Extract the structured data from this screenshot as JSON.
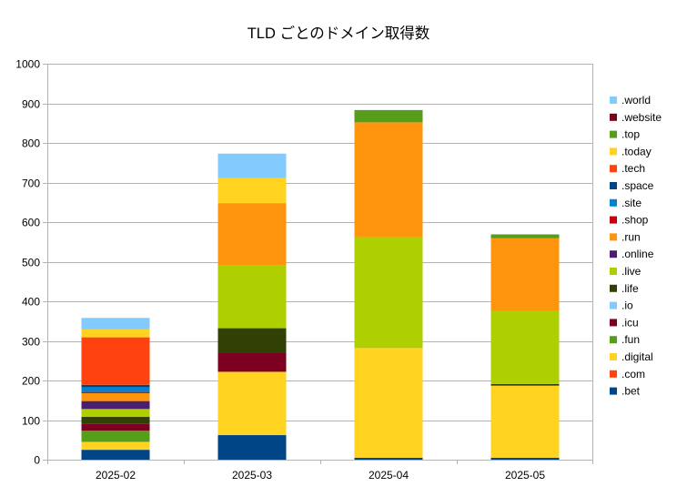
{
  "chart_data": {
    "type": "bar",
    "stacked": true,
    "title": "TLD ごとのドメイン取得数",
    "xlabel": "",
    "ylabel": "",
    "categories": [
      "2025-02",
      "2025-03",
      "2025-04",
      "2025-05"
    ],
    "ylim": [
      0,
      1000
    ],
    "yticks": [
      0,
      100,
      200,
      300,
      400,
      500,
      600,
      700,
      800,
      900,
      1000
    ],
    "grid": true,
    "legend_position": "right",
    "series": [
      {
        "name": ".bet",
        "color": "#004586",
        "values": [
          25,
          62,
          5,
          5
        ]
      },
      {
        "name": ".com",
        "color": "#ff420e",
        "values": [
          0,
          0,
          0,
          0
        ]
      },
      {
        "name": ".digital",
        "color": "#ffd320",
        "values": [
          20,
          160,
          277,
          182
        ]
      },
      {
        "name": ".fun",
        "color": "#579d1c",
        "values": [
          28,
          0,
          0,
          0
        ]
      },
      {
        "name": ".icu",
        "color": "#7e0021",
        "values": [
          17,
          48,
          0,
          0
        ]
      },
      {
        "name": ".io",
        "color": "#83caff",
        "values": [
          0,
          0,
          0,
          0
        ]
      },
      {
        "name": ".life",
        "color": "#314004",
        "values": [
          18,
          62,
          0,
          4
        ]
      },
      {
        "name": ".live",
        "color": "#aecf00",
        "values": [
          20,
          160,
          280,
          186
        ]
      },
      {
        "name": ".online",
        "color": "#4b1f6f",
        "values": [
          20,
          0,
          0,
          0
        ]
      },
      {
        "name": ".run",
        "color": "#ff950e",
        "values": [
          20,
          156,
          290,
          182
        ]
      },
      {
        "name": ".shop",
        "color": "#c5000b",
        "values": [
          3,
          0,
          0,
          0
        ]
      },
      {
        "name": ".site",
        "color": "#0084d1",
        "values": [
          12,
          0,
          0,
          0
        ]
      },
      {
        "name": ".space",
        "color": "#004586",
        "values": [
          6,
          0,
          0,
          0
        ]
      },
      {
        "name": ".tech",
        "color": "#ff420e",
        "values": [
          120,
          0,
          0,
          0
        ]
      },
      {
        "name": ".today",
        "color": "#ffd320",
        "values": [
          20,
          63,
          0,
          0
        ]
      },
      {
        "name": ".top",
        "color": "#579d1c",
        "values": [
          0,
          0,
          31,
          10
        ]
      },
      {
        "name": ".website",
        "color": "#7e0021",
        "values": [
          0,
          0,
          0,
          0
        ]
      },
      {
        "name": ".world",
        "color": "#83caff",
        "values": [
          29,
          62,
          0,
          0
        ]
      }
    ]
  }
}
